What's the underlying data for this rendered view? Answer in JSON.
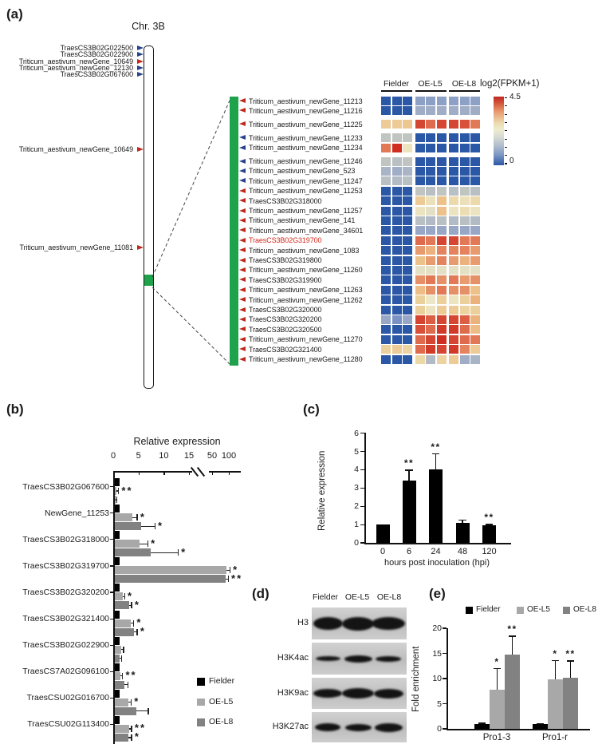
{
  "panel_labels": {
    "a": "(a)",
    "b": "(b)",
    "c": "(c)",
    "d": "(d)",
    "e": "(e)"
  },
  "colors": {
    "black_bar": "#000000",
    "light_gray_bar": "#a8a8a8",
    "dark_gray_bar": "#828282",
    "green_region": "#1ea24b",
    "red_arrow": "#c0281e",
    "blue_arrow": "#27418f",
    "highlight_gene_red": "#d3281c"
  },
  "panel_a": {
    "chr_title": "Chr. 3B",
    "genes": [
      {
        "name": "TraesCS3B02G022500",
        "strand": "blue",
        "y": 60
      },
      {
        "name": "TraesCS3B02G022900",
        "strand": "blue",
        "y": 68
      },
      {
        "name": "Triticum_aestivum_newGene_10649",
        "strand": "red",
        "y": 77
      },
      {
        "name": "Triticum_aestivum_newGene_12130",
        "strand": "blue",
        "y": 85
      },
      {
        "name": "TraesCS3B02G067600",
        "strand": "blue",
        "y": 93
      },
      {
        "name": "Triticum_aestivum_newGene_10649",
        "strand": "red",
        "y": 187
      },
      {
        "name": "Triticum_aestivum_newGene_11081",
        "strand": "red",
        "y": 310
      }
    ]
  },
  "panel_d": {
    "columns": [
      "Fielder",
      "OE-L5",
      "OE-L8"
    ],
    "rows": [
      {
        "label": "H3",
        "bands": [
          [
            37,
            16
          ],
          [
            40,
            17
          ],
          [
            42,
            16
          ]
        ]
      },
      {
        "label": "H3K4ac",
        "bands": [
          [
            31,
            6
          ],
          [
            35,
            9
          ],
          [
            32,
            7
          ]
        ]
      },
      {
        "label": "H3K9ac",
        "bands": [
          [
            36,
            11
          ],
          [
            40,
            13
          ],
          [
            37,
            12
          ]
        ]
      },
      {
        "label": "H3K27ac",
        "bands": [
          [
            32,
            10
          ],
          [
            33,
            9
          ],
          [
            35,
            11
          ]
        ]
      }
    ]
  },
  "chart_data": [
    {
      "id": "a-heatmap",
      "type": "heatmap",
      "title": "log2(FPKM+1)",
      "vmin": 0,
      "vmax": 4.5,
      "col_groups": [
        "Fielder",
        "OE-L5",
        "OE-L8"
      ],
      "cols_per_group": 3,
      "gaps_before": [
        2,
        3,
        5
      ],
      "palette": [
        [
          0,
          "#2b57a7"
        ],
        [
          0.9,
          "#7b93c4"
        ],
        [
          1.4,
          "#a9b4c6"
        ],
        [
          1.8,
          "#c9cbc0"
        ],
        [
          2.2,
          "#ece7c6"
        ],
        [
          2.9,
          "#ecd09b"
        ],
        [
          3.3,
          "#edbd85"
        ],
        [
          3.7,
          "#e59067"
        ],
        [
          4.1,
          "#dc5f45"
        ],
        [
          4.5,
          "#ce2d1f"
        ]
      ],
      "rows": [
        {
          "gene": "Triticum_aestivum_newGene_11213",
          "arrow": "red",
          "values": [
            0,
            0,
            0,
            1.1,
            1.1,
            1.1,
            1.1,
            1.1,
            1.1
          ]
        },
        {
          "gene": "Triticum_aestivum_newGene_11216",
          "arrow": "red",
          "values": [
            0,
            0,
            0,
            1.3,
            1.3,
            1.3,
            1.3,
            1.3,
            1.3
          ]
        },
        {
          "gene": "Triticum_aestivum_newGene_11225",
          "arrow": "red",
          "values": [
            3.0,
            3.0,
            3.1,
            4.3,
            4.0,
            4.3,
            4.3,
            4.2,
            3.9
          ]
        },
        {
          "gene": "Triticum_aestivum_newGene_11233",
          "arrow": "blue",
          "values": [
            1.7,
            1.7,
            1.7,
            0,
            0,
            0,
            0,
            0,
            0
          ]
        },
        {
          "gene": "Triticum_aestivum_newGene_11234",
          "arrow": "blue",
          "values": [
            3.9,
            4.5,
            2.3,
            0,
            0,
            0,
            0,
            0,
            0
          ]
        },
        {
          "gene": "Triticum_aestivum_newGene_11246",
          "arrow": "blue",
          "values": [
            1.7,
            1.6,
            1.7,
            0,
            0,
            0,
            0,
            0,
            0
          ]
        },
        {
          "gene": "Triticum_aestivum_newGene_523",
          "arrow": "blue",
          "values": [
            1.4,
            1.3,
            1.4,
            0,
            0,
            0,
            0,
            0,
            0
          ]
        },
        {
          "gene": "Triticum_aestivum_newGene_11247",
          "arrow": "blue",
          "values": [
            1.6,
            1.5,
            1.6,
            0,
            0,
            0,
            0,
            0,
            0
          ]
        },
        {
          "gene": "Triticum_aestivum_newGene_11253",
          "arrow": "red",
          "values": [
            0,
            0,
            0,
            1.7,
            1.6,
            1.7,
            1.6,
            1.7,
            1.6
          ]
        },
        {
          "gene": "TraesCS3B02G318000",
          "arrow": "red",
          "values": [
            0,
            0,
            0,
            3.0,
            2.4,
            3.2,
            2.6,
            2.4,
            2.6
          ]
        },
        {
          "gene": "Triticum_aestivum_newGene_11257",
          "arrow": "red",
          "values": [
            0,
            0,
            0,
            2.3,
            2.1,
            3.2,
            2.3,
            2.5,
            2.3
          ]
        },
        {
          "gene": "Triticum_aestivum_newGene_141",
          "arrow": "red",
          "values": [
            0,
            0,
            0,
            1.6,
            1.5,
            1.6,
            1.5,
            1.6,
            1.5
          ]
        },
        {
          "gene": "Triticum_aestivum_newGene_34601",
          "arrow": "red",
          "values": [
            0,
            0,
            0,
            1.2,
            1.2,
            1.2,
            1.2,
            1.2,
            1.2
          ]
        },
        {
          "gene": "TraesCS3B02G319700",
          "arrow": "red",
          "label_red": true,
          "values": [
            0,
            0,
            0,
            4.0,
            3.9,
            4.3,
            4.3,
            3.9,
            3.9
          ]
        },
        {
          "gene": "Triticum_aestivum_newGene_1083",
          "arrow": "red",
          "values": [
            0,
            0,
            0,
            3.6,
            3.4,
            3.8,
            3.8,
            3.8,
            3.6
          ]
        },
        {
          "gene": "TraesCS3B02G319800",
          "arrow": "red",
          "values": [
            0,
            0,
            0,
            3.2,
            3.6,
            3.8,
            3.6,
            3.4,
            3.6
          ]
        },
        {
          "gene": "Triticum_aestivum_newGene_11260",
          "arrow": "red",
          "values": [
            0,
            0,
            0,
            2.1,
            2.1,
            2.1,
            2.1,
            2.1,
            2.1
          ]
        },
        {
          "gene": "TraesCS3B02G319900",
          "arrow": "red",
          "values": [
            0,
            0,
            0,
            3.7,
            3.9,
            3.7,
            3.9,
            3.6,
            3.7
          ]
        },
        {
          "gene": "Triticum_aestivum_newGene_11263",
          "arrow": "red",
          "values": [
            0,
            0,
            0,
            3.3,
            3.7,
            3.9,
            3.7,
            3.7,
            3.2
          ]
        },
        {
          "gene": "Triticum_aestivum_newGene_11262",
          "arrow": "red",
          "values": [
            0,
            0,
            0,
            2.9,
            2.2,
            2.9,
            2.3,
            2.9,
            3.4
          ]
        },
        {
          "gene": "TraesCS3B02G320000",
          "arrow": "red",
          "values": [
            0,
            0,
            0,
            2.9,
            2.3,
            3.0,
            3.0,
            2.8,
            2.9
          ]
        },
        {
          "gene": "TraesCS3B02G320200",
          "arrow": "red",
          "values": [
            1.2,
            0.9,
            1.2,
            4.3,
            4.1,
            4.3,
            4.3,
            4.1,
            3.4
          ]
        },
        {
          "gene": "TraesCS3B02G320500",
          "arrow": "red",
          "values": [
            0,
            0,
            0,
            4.2,
            4.0,
            4.4,
            4.4,
            4.0,
            3.3
          ]
        },
        {
          "gene": "Triticum_aestivum_newGene_11270",
          "arrow": "red",
          "values": [
            0,
            0,
            0,
            4.0,
            4.3,
            4.5,
            4.3,
            4.0,
            3.9
          ]
        },
        {
          "gene": "TraesCS3B02G321400",
          "arrow": "red",
          "values": [
            2.9,
            3.0,
            2.8,
            4.0,
            4.4,
            4.3,
            4.4,
            3.8,
            3.0
          ]
        },
        {
          "gene": "Triticum_aestivum_newGene_11280",
          "arrow": "red",
          "values": [
            0,
            0,
            0,
            2.7,
            1.5,
            2.8,
            3.0,
            1.3,
            1.4
          ]
        }
      ]
    },
    {
      "id": "b",
      "type": "bar",
      "orientation": "horizontal",
      "title": "Relative expression",
      "axis_ticks": [
        "0",
        "5",
        "10",
        "15",
        "50",
        "100"
      ],
      "axis_break_between": [
        15,
        50
      ],
      "series": [
        "Fielder",
        "OE-L5",
        "OE-L8"
      ],
      "series_colors": [
        "#000000",
        "#a8a8a8",
        "#828282"
      ],
      "groups": [
        {
          "gene": "TraesCS3B02G067600",
          "values": [
            1,
            0.45,
            0.3
          ],
          "errors": [
            0,
            0.25,
            0.12
          ],
          "sig": [
            "",
            "**",
            ""
          ]
        },
        {
          "gene": "NewGene_11253",
          "values": [
            1,
            3.5,
            5.3
          ],
          "errors": [
            0,
            0.9,
            2.6
          ],
          "sig": [
            "",
            "*",
            "*"
          ]
        },
        {
          "gene": "TraesCS3B02G318000",
          "values": [
            1,
            5.0,
            7.2
          ],
          "errors": [
            0,
            1.5,
            5.3
          ],
          "sig": [
            "",
            "*",
            "*"
          ]
        },
        {
          "gene": "TraesCS3B02G319700",
          "values": [
            1,
            90,
            88
          ],
          "errors": [
            0,
            8,
            5
          ],
          "sig": [
            "",
            "*",
            "**"
          ]
        },
        {
          "gene": "TraesCS3B02G320200",
          "values": [
            1,
            1.6,
            2.9
          ],
          "errors": [
            0,
            0.3,
            0.4
          ],
          "sig": [
            "",
            "*",
            "*"
          ]
        },
        {
          "gene": "TraesCS3B02G321400",
          "values": [
            1,
            3.2,
            3.9
          ],
          "errors": [
            0,
            0.5,
            0.5
          ],
          "sig": [
            "",
            "*",
            "*"
          ]
        },
        {
          "gene": "TraesCS3B02G022900",
          "values": [
            1,
            1.3,
            1.1
          ],
          "errors": [
            0,
            0.4,
            0.2
          ],
          "sig": [
            "",
            "",
            ""
          ]
        },
        {
          "gene": "TraesCS7A02G096100",
          "values": [
            1,
            1.2,
            1.9
          ],
          "errors": [
            0,
            0.3,
            0.7
          ],
          "sig": [
            "",
            "**",
            ""
          ]
        },
        {
          "gene": "TraesCSU02G016700",
          "values": [
            1,
            2.7,
            4.3
          ],
          "errors": [
            0,
            0.5,
            2.3
          ],
          "sig": [
            "",
            "*",
            ""
          ]
        },
        {
          "gene": "TraesCSU02G113400",
          "values": [
            1,
            2.9,
            2.8
          ],
          "errors": [
            0,
            0.4,
            0.5
          ],
          "sig": [
            "",
            "**",
            "*"
          ]
        }
      ]
    },
    {
      "id": "c",
      "type": "bar",
      "ylabel": "Relative expression",
      "xlabel": "hours post inoculation (hpi)",
      "ylim": [
        0,
        6
      ],
      "yticks": [
        "0",
        "1",
        "2",
        "3",
        "4",
        "5",
        "6"
      ],
      "categories": [
        "0",
        "6",
        "24",
        "48",
        "120"
      ],
      "values": [
        1.0,
        3.4,
        4.0,
        1.1,
        0.95
      ],
      "errors": [
        0,
        0.6,
        0.9,
        0.17,
        0.08
      ],
      "sig": [
        "",
        "**",
        "**",
        "",
        "**"
      ],
      "bar_color": "#000000"
    },
    {
      "id": "e",
      "type": "bar",
      "ylabel": "Fold enrichment",
      "ylim": [
        0,
        20
      ],
      "yticks": [
        "0",
        "5",
        "10",
        "15",
        "20"
      ],
      "categories": [
        "Pro1-3",
        "Pro1-r"
      ],
      "series": [
        {
          "name": "Fielder",
          "values": [
            1.0,
            1.0
          ],
          "errors": [
            0.2,
            0.15
          ],
          "sig": [
            "",
            ""
          ]
        },
        {
          "name": "OE-L5",
          "values": [
            7.8,
            9.8
          ],
          "errors": [
            4.3,
            3.9
          ],
          "sig": [
            "*",
            "*"
          ]
        },
        {
          "name": "OE-L8",
          "values": [
            14.8,
            10.1
          ],
          "errors": [
            3.7,
            3.5
          ],
          "sig": [
            "**",
            "**"
          ]
        }
      ],
      "series_colors": [
        "#000000",
        "#a8a8a8",
        "#828282"
      ]
    }
  ]
}
